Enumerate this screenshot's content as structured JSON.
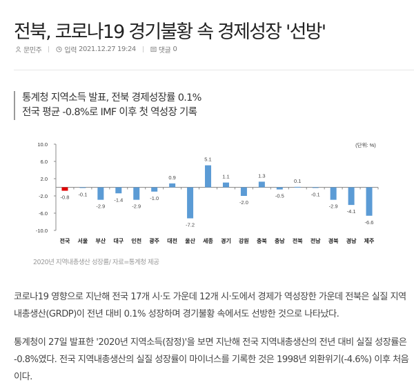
{
  "article": {
    "title": "전북, 코로나19 경기불황 속 경제성장 '선방'",
    "meta": {
      "author": "문민주",
      "author_icon": "person-icon",
      "published_label": "입력",
      "published_at": "2021.12.27 19:24",
      "clock_icon": "clock-icon",
      "comments_label": "댓글",
      "comments_count": "0",
      "comment_icon": "comment-icon"
    },
    "subheadings": [
      "통계청 지역소득 발표, 전북 경제성장률 0.1%",
      "전국 평균 -0.8%로 IMF 이후 첫 역성장 기록"
    ],
    "figure_caption": "2020년 지역내총생산 성장률/ 자료=통계청 제공",
    "paragraphs": [
      "코로나19 영향으로 지난해 전국 17개 시·도 가운데 12개 시·도에서 경제가 역성장한 가운데 전북은 실질 지역내총생산(GRDP)이 전년 대비 0.1% 성장하며 경기불황 속에서도 선방한 것으로 나타났다.",
      "통계청이 27일 발표한 '2020년 지역소득(잠정)'을 보면 지난해 전국 지역내총생산의 전년 대비 실질 성장률은 -0.8%였다. 전국 지역내총생산의 실질 성장률이 마이너스를 기록한 것은 1998년 외환위기(-4.6%) 이후 처음이다."
    ]
  },
  "colors": {
    "bar": "#5b9bd5",
    "highlight_bar": "#e00000",
    "axis": "#888888"
  },
  "chart_data": {
    "type": "bar",
    "title": "",
    "unit_label": "(단위: %)",
    "xlabel": "",
    "ylabel": "",
    "ylim": [
      -10.0,
      10.0
    ],
    "yticks": [
      "10.0",
      "6.0",
      "2.0",
      "-2.0",
      "-6.0",
      "-10.0"
    ],
    "ytick_values": [
      10,
      6,
      2,
      -2,
      -6,
      -10
    ],
    "grid": false,
    "legend": "none",
    "categories": [
      "전국",
      "서울",
      "부산",
      "대구",
      "인천",
      "광주",
      "대전",
      "울산",
      "세종",
      "경기",
      "강원",
      "충북",
      "충남",
      "전북",
      "전남",
      "경북",
      "경남",
      "제주"
    ],
    "values": [
      -0.8,
      -0.1,
      -2.9,
      -1.4,
      -2.9,
      -1.0,
      0.9,
      -7.2,
      5.1,
      1.1,
      -2.0,
      1.3,
      -0.5,
      0.1,
      -0.1,
      -2.9,
      -4.1,
      -6.6
    ],
    "labels": [
      "-0.8",
      "-0.1",
      "-2.9",
      "-1.4",
      "-2.9",
      "-1.0",
      "0.9",
      "-7.2",
      "5.1",
      "1.1",
      "-2.0",
      "1.3",
      "-0.5",
      "0.1",
      "-0.1",
      "-2.9",
      "-4.1",
      "-6.6"
    ],
    "highlight_index": 0
  }
}
